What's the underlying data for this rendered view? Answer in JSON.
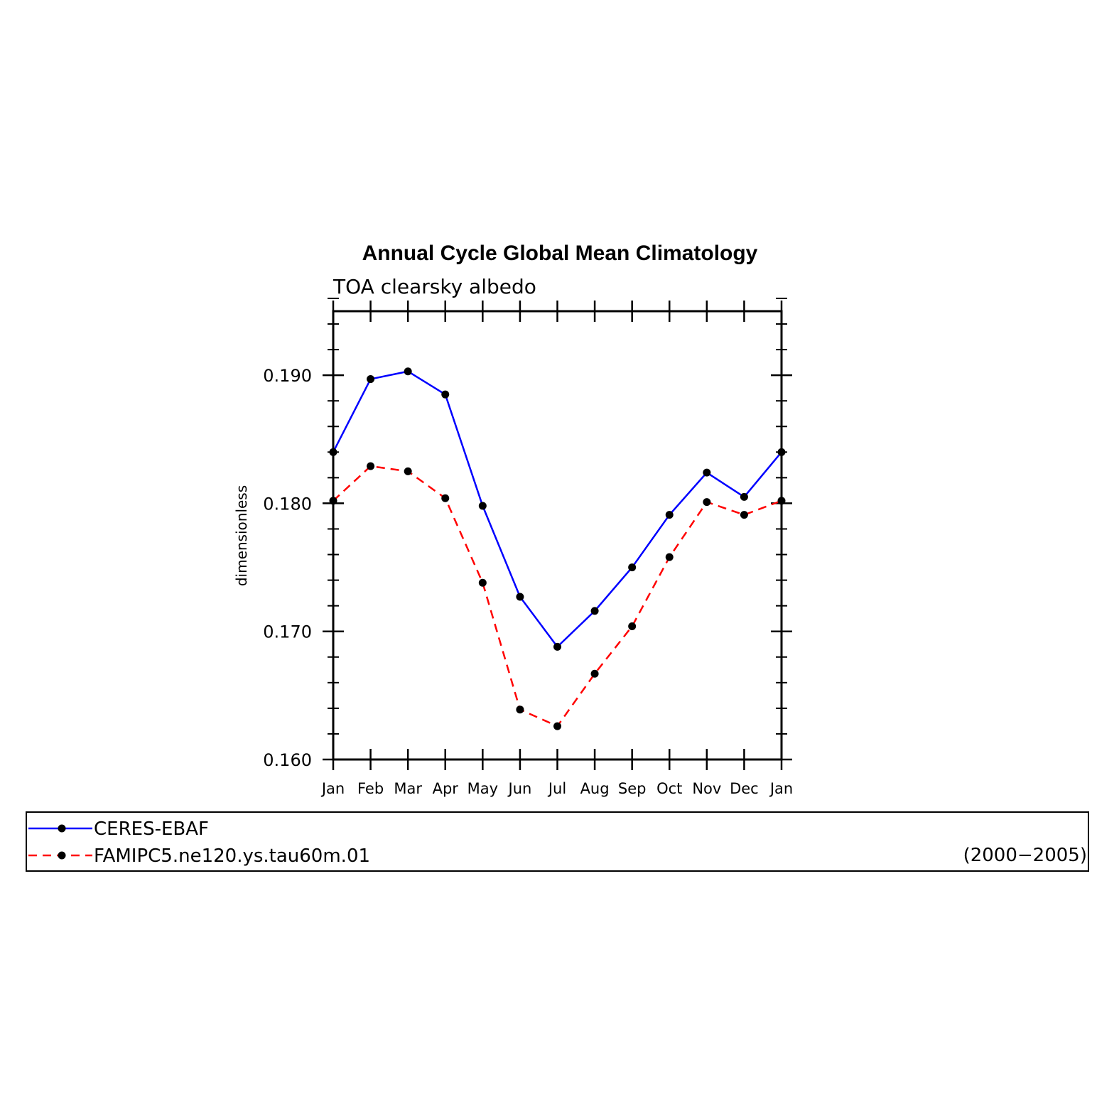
{
  "chart_data": {
    "type": "line",
    "title": "Annual Cycle Global Mean Climatology",
    "subtitle": "TOA clearsky albedo",
    "ylabel": "dimensionless",
    "xlabel": "",
    "categories": [
      "Jan",
      "Feb",
      "Mar",
      "Apr",
      "May",
      "Jun",
      "Jul",
      "Aug",
      "Sep",
      "Oct",
      "Nov",
      "Dec",
      "Jan"
    ],
    "ylim": [
      0.16,
      0.195
    ],
    "yticks": [
      0.16,
      0.17,
      0.18,
      0.19
    ],
    "ytick_labels": [
      "0.160",
      "0.170",
      "0.180",
      "0.190"
    ],
    "grid": false,
    "legend_placement": "bottom",
    "series": [
      {
        "name": "CERES-EBAF",
        "color": "#0000ff",
        "dash": "solid",
        "values": [
          0.184,
          0.1897,
          0.1903,
          0.1885,
          0.1798,
          0.1727,
          0.1688,
          0.1716,
          0.175,
          0.1791,
          0.1824,
          0.1805,
          0.184
        ]
      },
      {
        "name": "FAMIPC5.ne120.ys.tau60m.01",
        "color": "#ff0000",
        "dash": "dashed",
        "values": [
          0.1802,
          0.1829,
          0.1825,
          0.1804,
          0.1738,
          0.1639,
          0.1626,
          0.1667,
          0.1704,
          0.1758,
          0.1801,
          0.1791,
          0.1802
        ]
      }
    ],
    "legend_note": "(2000−2005)"
  }
}
